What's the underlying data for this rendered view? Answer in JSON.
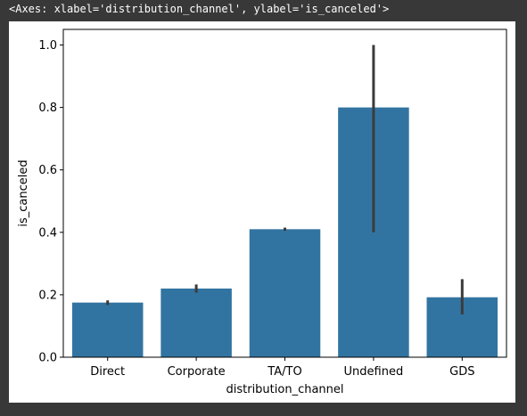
{
  "repr_text": "<Axes: xlabel='distribution_channel', ylabel='is_canceled'>",
  "chart_data": {
    "type": "bar",
    "categories": [
      "Direct",
      "Corporate",
      "TA/TO",
      "Undefined",
      "GDS"
    ],
    "values": [
      0.175,
      0.22,
      0.41,
      0.8,
      0.192
    ],
    "error_low": [
      0.167,
      0.207,
      0.405,
      0.4,
      0.137
    ],
    "error_high": [
      0.182,
      0.233,
      0.415,
      1.0,
      0.25
    ],
    "xlabel": "distribution_channel",
    "ylabel": "is_canceled",
    "ylim": [
      0.0,
      1.05
    ],
    "yticks": [
      0.0,
      0.2,
      0.4,
      0.6,
      0.8,
      1.0
    ],
    "ytick_labels": [
      "0.0",
      "0.2",
      "0.4",
      "0.6",
      "0.8",
      "1.0"
    ],
    "bar_color": "#3274a1",
    "errorbar_color": "#3b3b3b",
    "grid": false,
    "legend": "none"
  }
}
